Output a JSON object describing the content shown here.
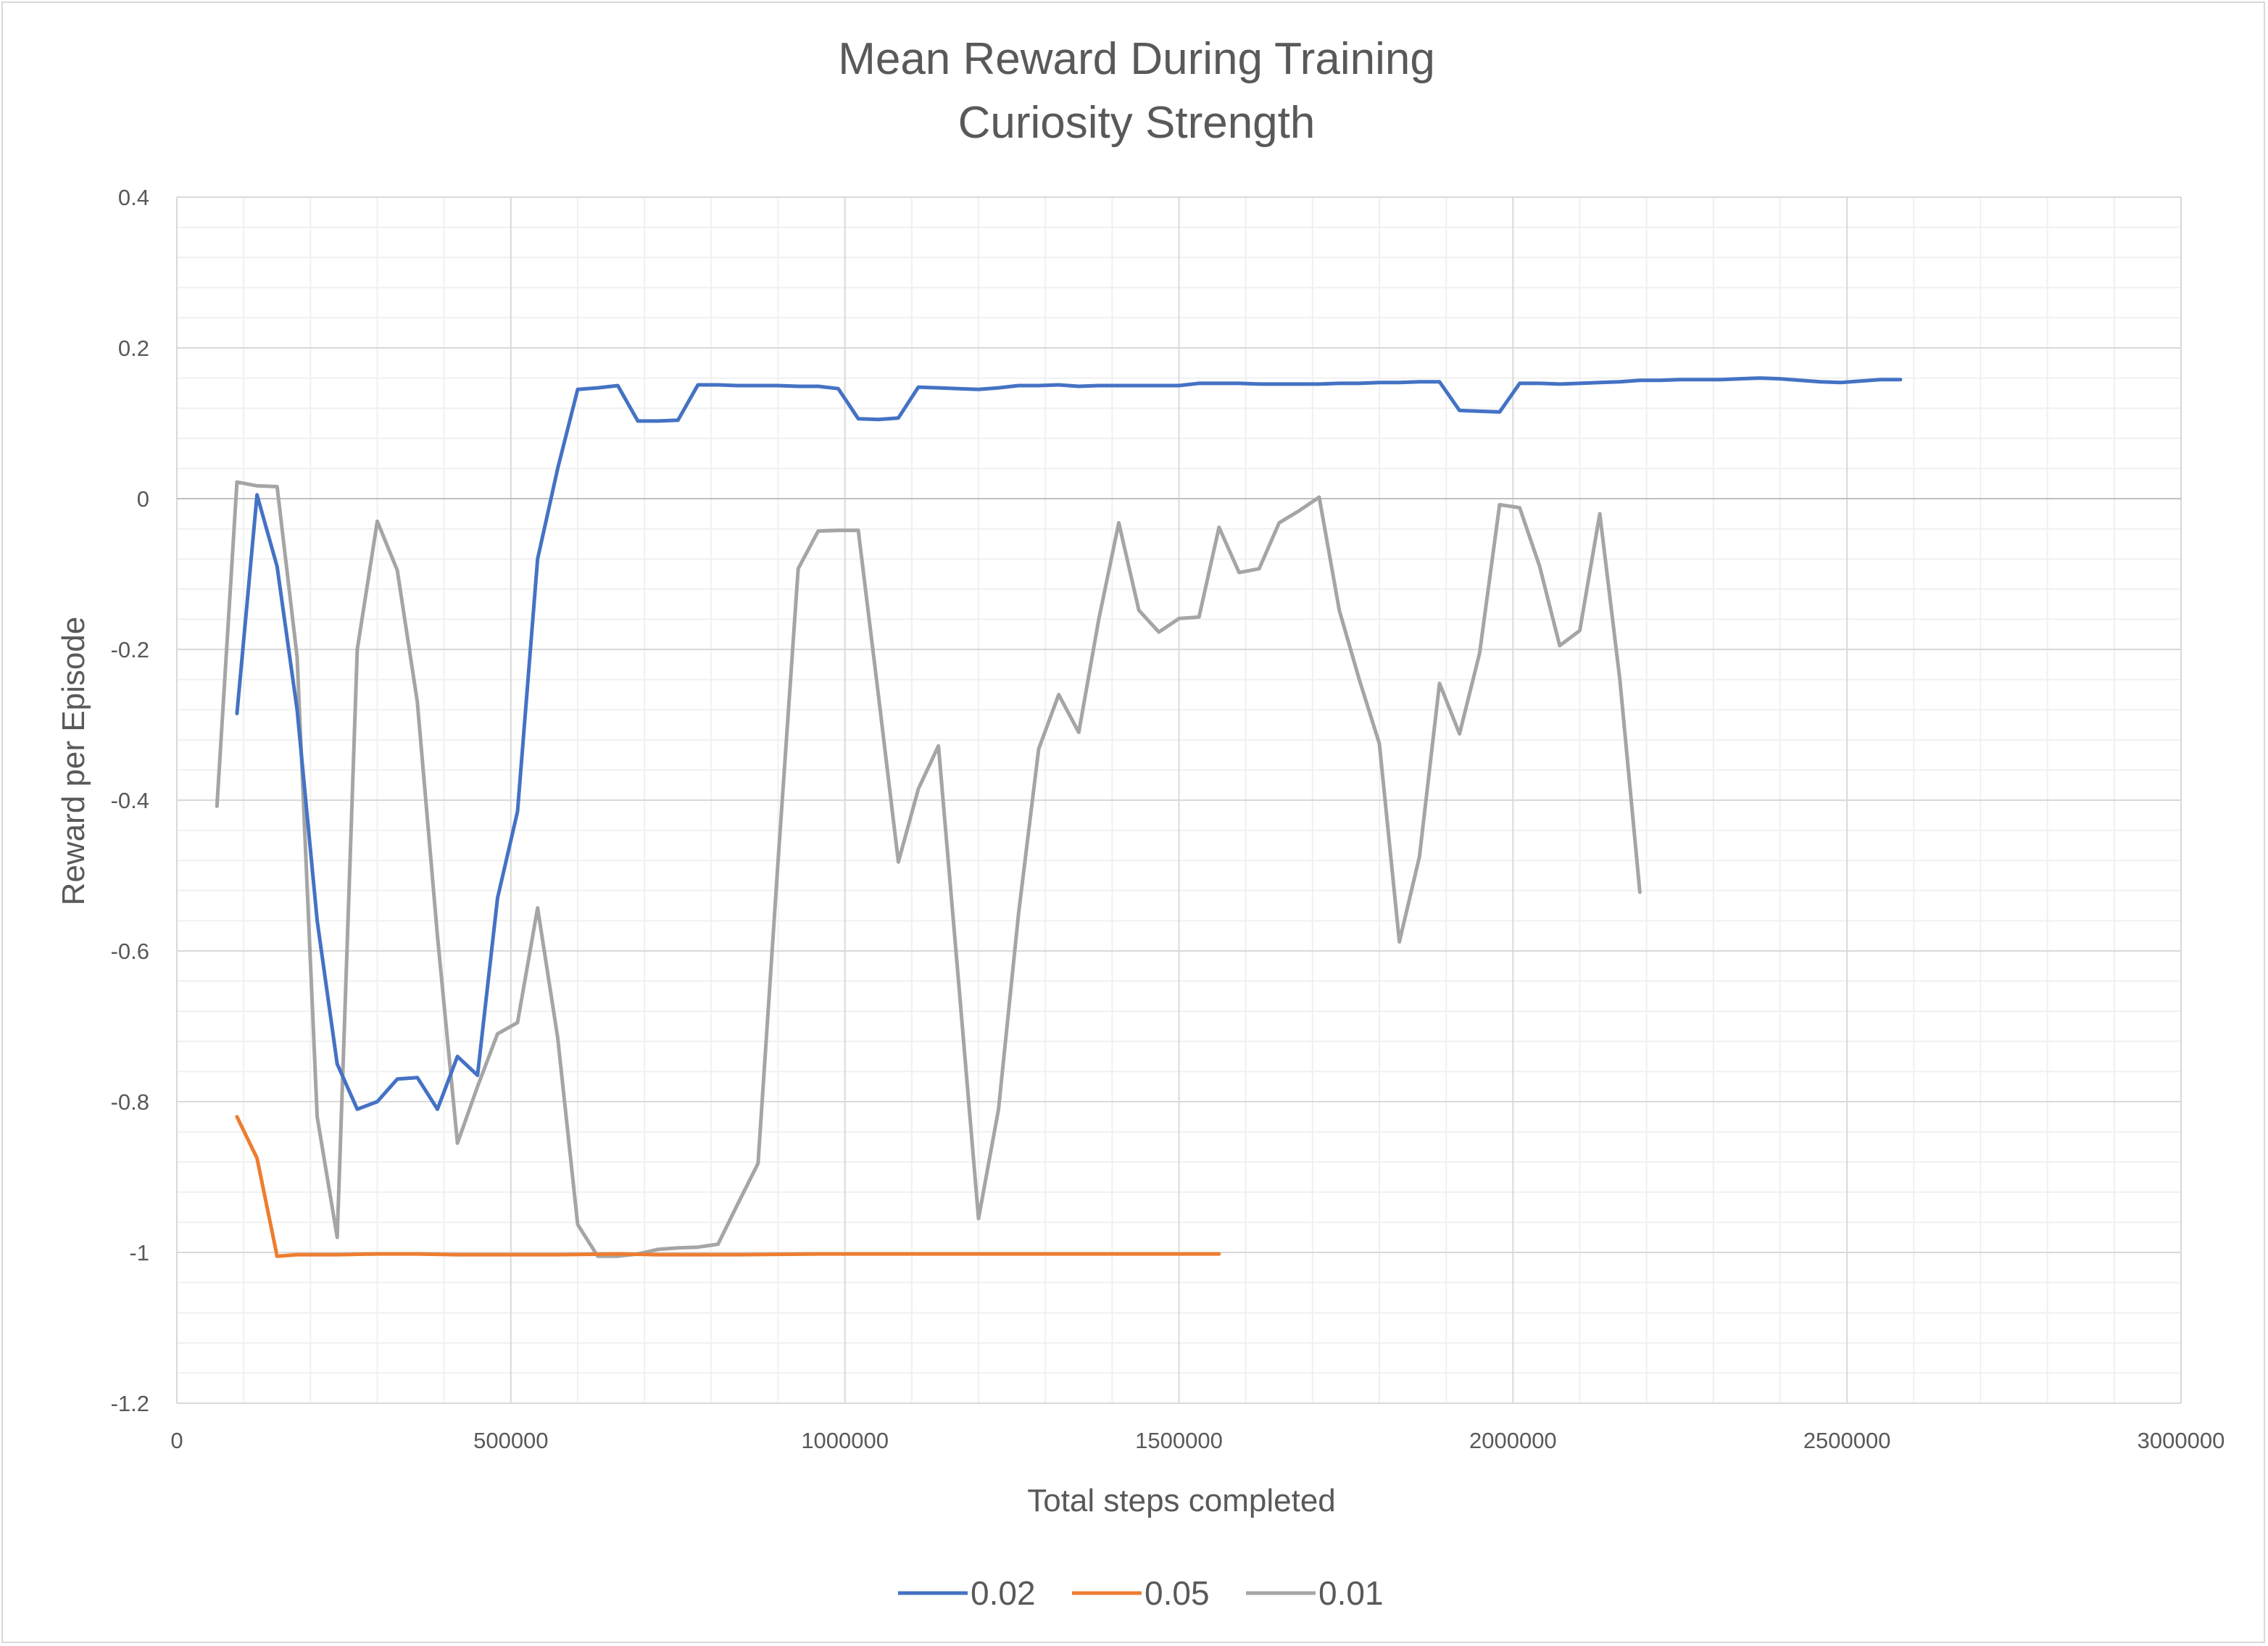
{
  "chart_data": {
    "type": "line",
    "title": "Mean Reward During Training",
    "subtitle": "Curiosity Strength",
    "xlabel": "Total steps completed",
    "ylabel": "Reward per Episode",
    "xlim": [
      0,
      3000000
    ],
    "ylim": [
      -1.2,
      0.4
    ],
    "x_ticks": [
      0,
      500000,
      1000000,
      1500000,
      2000000,
      2500000,
      3000000
    ],
    "x_tick_labels": [
      "0",
      "500000",
      "1000000",
      "1500000",
      "2000000",
      "2500000",
      "3000000"
    ],
    "y_ticks": [
      0.4,
      0.2,
      0,
      -0.2,
      -0.4,
      -0.6,
      -0.8,
      -1,
      -1.2
    ],
    "y_tick_labels": [
      "0.4",
      "0.2",
      "0",
      "-0.2",
      "-0.4",
      "-0.6",
      "-0.8",
      "-1",
      "-1.2"
    ],
    "grid": true,
    "legend_position": "bottom",
    "series": [
      {
        "name": "0.02",
        "color": "#4472c4",
        "points": [
          [
            90000,
            -0.285
          ],
          [
            120000,
            0.005
          ],
          [
            150000,
            -0.09
          ],
          [
            180000,
            -0.28
          ],
          [
            210000,
            -0.56
          ],
          [
            240000,
            -0.75
          ],
          [
            270000,
            -0.81
          ],
          [
            300000,
            -0.8
          ],
          [
            330000,
            -0.77
          ],
          [
            360000,
            -0.768
          ],
          [
            390000,
            -0.81
          ],
          [
            420000,
            -0.74
          ],
          [
            450000,
            -0.765
          ],
          [
            480000,
            -0.53
          ],
          [
            510000,
            -0.415
          ],
          [
            540000,
            -0.08
          ],
          [
            570000,
            0.04
          ],
          [
            600000,
            0.145
          ],
          [
            630000,
            0.147
          ],
          [
            660000,
            0.15
          ],
          [
            690000,
            0.103
          ],
          [
            720000,
            0.103
          ],
          [
            750000,
            0.104
          ],
          [
            780000,
            0.151
          ],
          [
            810000,
            0.151
          ],
          [
            840000,
            0.15
          ],
          [
            870000,
            0.15
          ],
          [
            900000,
            0.15
          ],
          [
            930000,
            0.149
          ],
          [
            960000,
            0.149
          ],
          [
            990000,
            0.146
          ],
          [
            1020000,
            0.106
          ],
          [
            1050000,
            0.105
          ],
          [
            1080000,
            0.107
          ],
          [
            1110000,
            0.148
          ],
          [
            1140000,
            0.147
          ],
          [
            1170000,
            0.146
          ],
          [
            1200000,
            0.145
          ],
          [
            1230000,
            0.147
          ],
          [
            1260000,
            0.15
          ],
          [
            1290000,
            0.15
          ],
          [
            1320000,
            0.151
          ],
          [
            1350000,
            0.149
          ],
          [
            1380000,
            0.15
          ],
          [
            1410000,
            0.15
          ],
          [
            1440000,
            0.15
          ],
          [
            1470000,
            0.15
          ],
          [
            1500000,
            0.15
          ],
          [
            1530000,
            0.153
          ],
          [
            1560000,
            0.153
          ],
          [
            1590000,
            0.153
          ],
          [
            1620000,
            0.152
          ],
          [
            1650000,
            0.152
          ],
          [
            1680000,
            0.152
          ],
          [
            1710000,
            0.152
          ],
          [
            1740000,
            0.153
          ],
          [
            1770000,
            0.153
          ],
          [
            1800000,
            0.154
          ],
          [
            1830000,
            0.154
          ],
          [
            1860000,
            0.155
          ],
          [
            1890000,
            0.155
          ],
          [
            1920000,
            0.117
          ],
          [
            1950000,
            0.116
          ],
          [
            1980000,
            0.115
          ],
          [
            2010000,
            0.153
          ],
          [
            2040000,
            0.153
          ],
          [
            2070000,
            0.152
          ],
          [
            2100000,
            0.153
          ],
          [
            2130000,
            0.154
          ],
          [
            2160000,
            0.155
          ],
          [
            2190000,
            0.157
          ],
          [
            2220000,
            0.157
          ],
          [
            2250000,
            0.158
          ],
          [
            2280000,
            0.158
          ],
          [
            2310000,
            0.158
          ],
          [
            2340000,
            0.159
          ],
          [
            2370000,
            0.16
          ],
          [
            2400000,
            0.159
          ],
          [
            2430000,
            0.157
          ],
          [
            2460000,
            0.155
          ],
          [
            2490000,
            0.154
          ],
          [
            2520000,
            0.156
          ],
          [
            2550000,
            0.158
          ],
          [
            2580000,
            0.158
          ]
        ]
      },
      {
        "name": "0.05",
        "color": "#ed7d31",
        "points": [
          [
            90000,
            -0.82
          ],
          [
            120000,
            -0.875
          ],
          [
            150000,
            -1.005
          ],
          [
            180000,
            -1.003
          ],
          [
            240000,
            -1.003
          ],
          [
            300000,
            -1.002
          ],
          [
            360000,
            -1.002
          ],
          [
            420000,
            -1.003
          ],
          [
            480000,
            -1.003
          ],
          [
            570000,
            -1.003
          ],
          [
            660000,
            -1.002
          ],
          [
            720000,
            -1.003
          ],
          [
            840000,
            -1.003
          ],
          [
            960000,
            -1.002
          ],
          [
            1080000,
            -1.002
          ],
          [
            1200000,
            -1.002
          ],
          [
            1320000,
            -1.002
          ],
          [
            1440000,
            -1.002
          ],
          [
            1560000,
            -1.002
          ]
        ]
      },
      {
        "name": "0.01",
        "color": "#a5a5a5",
        "points": [
          [
            60000,
            -0.408
          ],
          [
            90000,
            0.022
          ],
          [
            120000,
            0.017
          ],
          [
            150000,
            0.016
          ],
          [
            180000,
            -0.21
          ],
          [
            210000,
            -0.82
          ],
          [
            240000,
            -0.98
          ],
          [
            270000,
            -0.2
          ],
          [
            300000,
            -0.03
          ],
          [
            330000,
            -0.095
          ],
          [
            360000,
            -0.27
          ],
          [
            390000,
            -0.58
          ],
          [
            420000,
            -0.855
          ],
          [
            450000,
            -0.78
          ],
          [
            480000,
            -0.71
          ],
          [
            510000,
            -0.695
          ],
          [
            540000,
            -0.543
          ],
          [
            570000,
            -0.715
          ],
          [
            600000,
            -0.963
          ],
          [
            630000,
            -1.005
          ],
          [
            660000,
            -1.005
          ],
          [
            690000,
            -1.002
          ],
          [
            720000,
            -0.996
          ],
          [
            750000,
            -0.994
          ],
          [
            780000,
            -0.993
          ],
          [
            810000,
            -0.989
          ],
          [
            840000,
            -0.935
          ],
          [
            870000,
            -0.882
          ],
          [
            900000,
            -0.48
          ],
          [
            930000,
            -0.093
          ],
          [
            960000,
            -0.043
          ],
          [
            990000,
            -0.042
          ],
          [
            1020000,
            -0.042
          ],
          [
            1050000,
            -0.26
          ],
          [
            1080000,
            -0.482
          ],
          [
            1110000,
            -0.385
          ],
          [
            1140000,
            -0.328
          ],
          [
            1170000,
            -0.64
          ],
          [
            1200000,
            -0.955
          ],
          [
            1230000,
            -0.81
          ],
          [
            1260000,
            -0.55
          ],
          [
            1290000,
            -0.332
          ],
          [
            1320000,
            -0.26
          ],
          [
            1350000,
            -0.31
          ],
          [
            1380000,
            -0.16
          ],
          [
            1410000,
            -0.032
          ],
          [
            1440000,
            -0.148
          ],
          [
            1470000,
            -0.177
          ],
          [
            1500000,
            -0.159
          ],
          [
            1530000,
            -0.157
          ],
          [
            1560000,
            -0.038
          ],
          [
            1590000,
            -0.098
          ],
          [
            1620000,
            -0.093
          ],
          [
            1650000,
            -0.032
          ],
          [
            1680000,
            -0.016
          ],
          [
            1710000,
            0.002
          ],
          [
            1740000,
            -0.148
          ],
          [
            1770000,
            -0.24
          ],
          [
            1800000,
            -0.325
          ],
          [
            1830000,
            -0.588
          ],
          [
            1860000,
            -0.475
          ],
          [
            1890000,
            -0.245
          ],
          [
            1920000,
            -0.312
          ],
          [
            1950000,
            -0.205
          ],
          [
            1980000,
            -0.008
          ],
          [
            2010000,
            -0.012
          ],
          [
            2040000,
            -0.09
          ],
          [
            2070000,
            -0.195
          ],
          [
            2100000,
            -0.175
          ],
          [
            2130000,
            -0.02
          ],
          [
            2160000,
            -0.24
          ],
          [
            2190000,
            -0.522
          ]
        ]
      }
    ]
  }
}
